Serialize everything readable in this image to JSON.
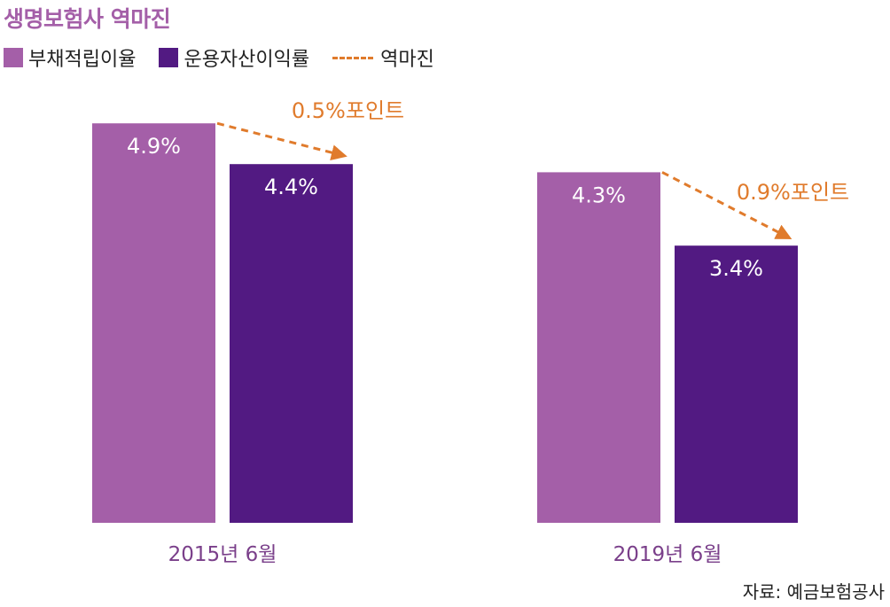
{
  "chart_data": {
    "type": "bar",
    "title": "생명보험사 역마진",
    "categories": [
      "2015년 6월",
      "2019년 6월"
    ],
    "series": [
      {
        "name": "부채적립이율",
        "values": [
          4.9,
          4.3
        ],
        "labels": [
          "4.9%",
          "4.3%"
        ],
        "color": "#a45fa8"
      },
      {
        "name": "운용자산이익률",
        "values": [
          4.4,
          3.4
        ],
        "labels": [
          "4.4%",
          "3.4%"
        ],
        "color": "#521a82"
      }
    ],
    "margin_series": {
      "name": "역마진",
      "color": "#e07b2c",
      "labels": [
        "0.5%포인트",
        "0.9%포인트"
      ]
    },
    "source": "자료: 예금보험공사",
    "ylim": [
      0,
      5.5
    ],
    "legend": "top-left",
    "grid": false
  }
}
